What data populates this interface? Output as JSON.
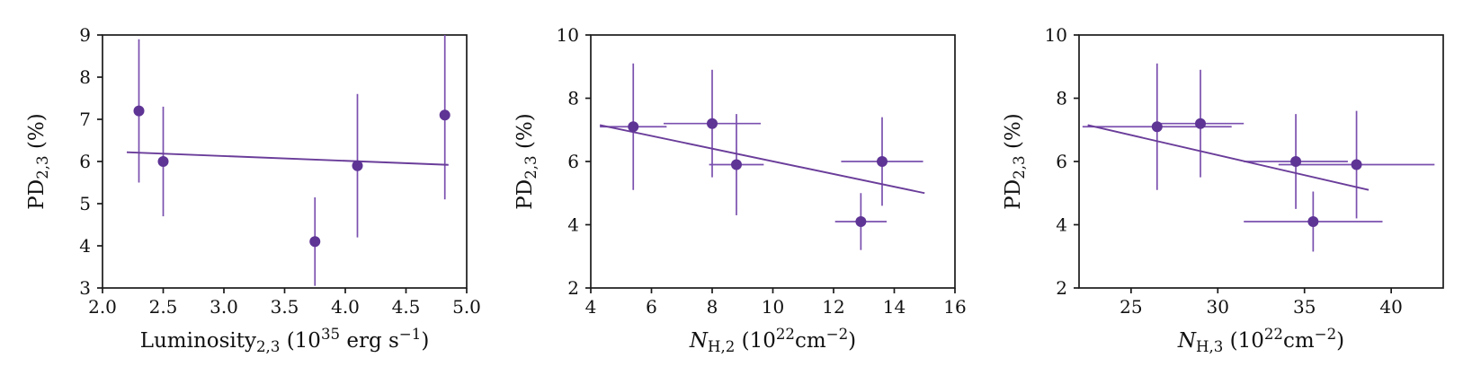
{
  "page": {
    "background": "#ffffff"
  },
  "style": {
    "accent": "#6a3d9a",
    "marker_color": "#5e3495",
    "errorbar_color": "#7a4fae",
    "axis_color": "#1a1a1a"
  },
  "chart_data": [
    {
      "id": "luminosity",
      "type": "scatter",
      "title": "",
      "xlabel_segments": [
        {
          "text": "Luminosity"
        },
        {
          "text": "2,3",
          "mode": "sub"
        },
        {
          "text": " (10"
        },
        {
          "text": "35",
          "mode": "sup"
        },
        {
          "text": " erg s"
        },
        {
          "text": "−1",
          "mode": "sup"
        },
        {
          "text": ")"
        }
      ],
      "ylabel_segments": [
        {
          "text": "PD"
        },
        {
          "text": "2,3",
          "mode": "sub"
        },
        {
          "text": " (%)"
        }
      ],
      "xlim": [
        2.0,
        5.0
      ],
      "ylim": [
        3,
        9
      ],
      "xticks": [
        2.0,
        2.5,
        3.0,
        3.5,
        4.0,
        4.5,
        5.0
      ],
      "xtick_labels": [
        "2.0",
        "2.5",
        "3.0",
        "3.5",
        "4.0",
        "4.5",
        "5.0"
      ],
      "yticks": [
        3,
        4,
        5,
        6,
        7,
        8,
        9
      ],
      "ytick_labels": [
        "3",
        "4",
        "5",
        "6",
        "7",
        "8",
        "9"
      ],
      "points": [
        {
          "x": 2.3,
          "y": 7.2,
          "xerr": 0,
          "yerr": 1.7
        },
        {
          "x": 2.5,
          "y": 6.0,
          "xerr": 0,
          "yerr": 1.3
        },
        {
          "x": 3.75,
          "y": 4.1,
          "xerr": 0,
          "yerr": 1.05
        },
        {
          "x": 4.1,
          "y": 5.9,
          "xerr": 0,
          "yerr": 1.7
        },
        {
          "x": 4.82,
          "y": 7.1,
          "xerr": 0,
          "yerr": 2.0
        }
      ],
      "fit_line": {
        "x": [
          2.2,
          4.85
        ],
        "y": [
          6.22,
          5.92
        ]
      }
    },
    {
      "id": "nh2",
      "type": "scatter",
      "title": "",
      "xlabel_segments": [
        {
          "text": "N",
          "italic": true
        },
        {
          "text": "H,2",
          "mode": "sub"
        },
        {
          "text": " (10"
        },
        {
          "text": "22",
          "mode": "sup"
        },
        {
          "text": "cm"
        },
        {
          "text": "−2",
          "mode": "sup"
        },
        {
          "text": ")"
        }
      ],
      "ylabel_segments": [
        {
          "text": "PD"
        },
        {
          "text": "2,3",
          "mode": "sub"
        },
        {
          "text": " (%)"
        }
      ],
      "xlim": [
        4,
        16
      ],
      "ylim": [
        2,
        10
      ],
      "xticks": [
        4,
        6,
        8,
        10,
        12,
        14,
        16
      ],
      "xtick_labels": [
        "4",
        "6",
        "8",
        "10",
        "12",
        "14",
        "16"
      ],
      "yticks": [
        2,
        4,
        6,
        8,
        10
      ],
      "ytick_labels": [
        "2",
        "4",
        "6",
        "8",
        "10"
      ],
      "points": [
        {
          "x": 5.4,
          "y": 7.1,
          "xerr": 1.1,
          "yerr": 2.0
        },
        {
          "x": 8.0,
          "y": 7.2,
          "xerr": 1.6,
          "yerr": 1.7
        },
        {
          "x": 8.8,
          "y": 5.9,
          "xerr": 0.9,
          "yerr": 1.6
        },
        {
          "x": 12.9,
          "y": 4.1,
          "xerr": 0.85,
          "yerr": 0.9
        },
        {
          "x": 13.6,
          "y": 6.0,
          "xerr": 1.35,
          "yerr": 1.4
        }
      ],
      "fit_line": {
        "x": [
          4.3,
          15.0
        ],
        "y": [
          7.15,
          5.0
        ]
      }
    },
    {
      "id": "nh3",
      "type": "scatter",
      "title": "",
      "xlabel_segments": [
        {
          "text": "N",
          "italic": true
        },
        {
          "text": "H,3",
          "mode": "sub"
        },
        {
          "text": " (10"
        },
        {
          "text": "22",
          "mode": "sup"
        },
        {
          "text": "cm"
        },
        {
          "text": "−2",
          "mode": "sup"
        },
        {
          "text": ")"
        }
      ],
      "ylabel_segments": [
        {
          "text": "PD"
        },
        {
          "text": "2,3",
          "mode": "sub"
        },
        {
          "text": " (%)"
        }
      ],
      "xlim": [
        22,
        43
      ],
      "ylim": [
        2,
        10
      ],
      "xticks": [
        25,
        30,
        35,
        40
      ],
      "xtick_labels": [
        "25",
        "30",
        "35",
        "40"
      ],
      "yticks": [
        2,
        4,
        6,
        8,
        10
      ],
      "ytick_labels": [
        "2",
        "4",
        "6",
        "8",
        "10"
      ],
      "points": [
        {
          "x": 26.5,
          "y": 7.1,
          "xerr": 4.3,
          "yerr": 2.0
        },
        {
          "x": 29.0,
          "y": 7.2,
          "xerr": 2.5,
          "yerr": 1.7
        },
        {
          "x": 34.5,
          "y": 6.0,
          "xerr": 3.0,
          "yerr": 1.5
        },
        {
          "x": 35.5,
          "y": 4.1,
          "xerr": 4.0,
          "yerr": 0.95
        },
        {
          "x": 38.0,
          "y": 5.9,
          "xerr": 4.5,
          "yerr": 1.7
        }
      ],
      "fit_line": {
        "x": [
          22.5,
          38.7
        ],
        "y": [
          7.15,
          5.1
        ]
      }
    }
  ]
}
